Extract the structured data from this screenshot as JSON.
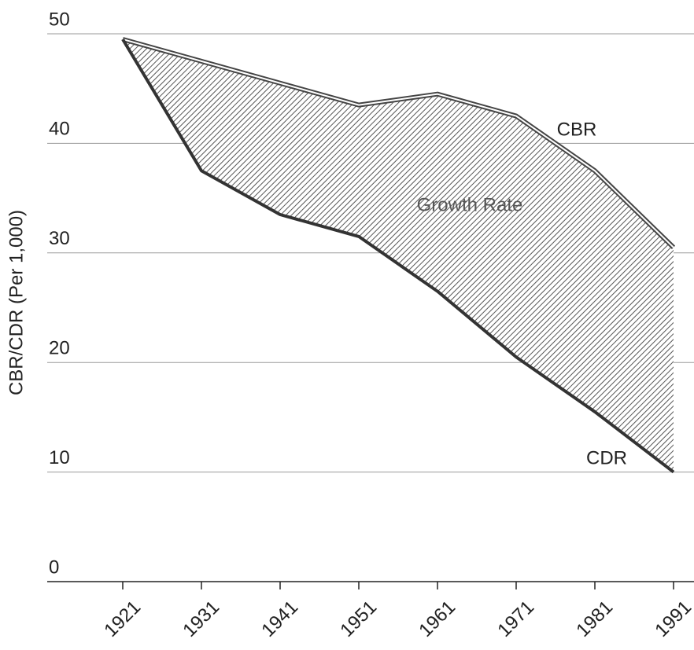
{
  "chart_data": {
    "type": "area_between",
    "y_label": "CBR/CDR (Per 1,000)",
    "categories": [
      "1921",
      "1931",
      "1941",
      "1951",
      "1961",
      "1971",
      "1981",
      "1991"
    ],
    "series": [
      {
        "name": "CBR",
        "color": "#444444",
        "values": [
          49.5,
          47.5,
          45.5,
          43.5,
          44.5,
          42.5,
          37.5,
          30.5
        ]
      },
      {
        "name": "CDR",
        "color": "#333333",
        "values": [
          49.5,
          37.5,
          33.5,
          31.5,
          26.5,
          20.5,
          15.5,
          10
        ]
      }
    ],
    "fill_label": "Growth Rate",
    "ylim": [
      0,
      50
    ],
    "yticks": [
      0,
      10,
      20,
      30,
      40,
      50
    ],
    "grid": true
  }
}
